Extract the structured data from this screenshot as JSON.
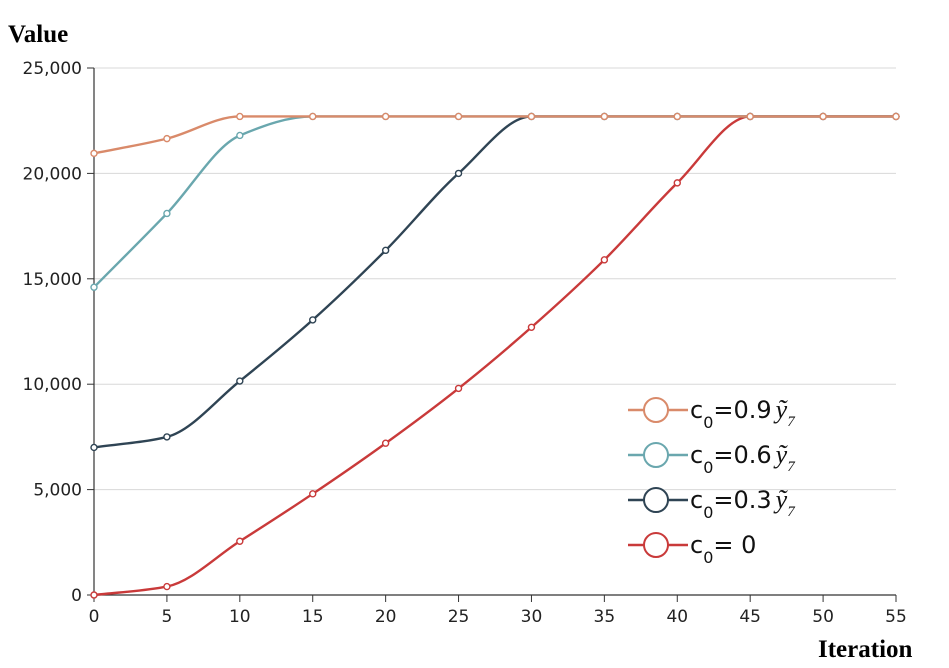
{
  "chart_data": {
    "type": "line",
    "ylabel": "Value",
    "xlabel": "Iteration",
    "x": [
      0,
      5,
      10,
      15,
      20,
      25,
      30,
      35,
      40,
      45,
      50,
      55
    ],
    "xlim": [
      0,
      55
    ],
    "ylim": [
      0,
      25000
    ],
    "x_ticks": [
      "0",
      "5",
      "10",
      "15",
      "20",
      "25",
      "30",
      "35",
      "40",
      "45",
      "50",
      "55"
    ],
    "y_ticks": [
      "0",
      "5,000",
      "10,000",
      "15,000",
      "20,000",
      "25,000"
    ],
    "y_tick_values": [
      0,
      5000,
      10000,
      15000,
      20000,
      25000
    ],
    "grid": "horizontal",
    "legend_position": "right",
    "series": [
      {
        "legend": {
          "prefix": "c",
          "sub": "0",
          "mid": "=0.9",
          "sym": "ỹ",
          "symsub": "7"
        },
        "color": "#d98a6a",
        "values": [
          20950,
          21650,
          22700,
          22700,
          22700,
          22700,
          22700,
          22700,
          22700,
          22700,
          22700,
          22700
        ]
      },
      {
        "legend": {
          "prefix": "c",
          "sub": "0",
          "mid": "=0.6",
          "sym": "ỹ",
          "symsub": "7"
        },
        "color": "#6aa7ae",
        "values": [
          14600,
          18100,
          21800,
          22700,
          22700,
          22700,
          22700,
          22700,
          22700,
          22700,
          22700,
          22700
        ]
      },
      {
        "legend": {
          "prefix": "c",
          "sub": "0",
          "mid": "=0.3",
          "sym": "ỹ",
          "symsub": "7"
        },
        "color": "#2f4454",
        "values": [
          7000,
          7500,
          10150,
          13050,
          16350,
          20000,
          22700,
          22700,
          22700,
          22700,
          22700,
          22700
        ]
      },
      {
        "legend": {
          "prefix": "c",
          "sub": "0",
          "mid": "= 0",
          "sym": "",
          "symsub": ""
        },
        "color": "#c93a3a",
        "values": [
          0,
          400,
          2550,
          4800,
          7200,
          9800,
          12700,
          15900,
          19550,
          22700,
          22700,
          22700
        ]
      }
    ]
  }
}
